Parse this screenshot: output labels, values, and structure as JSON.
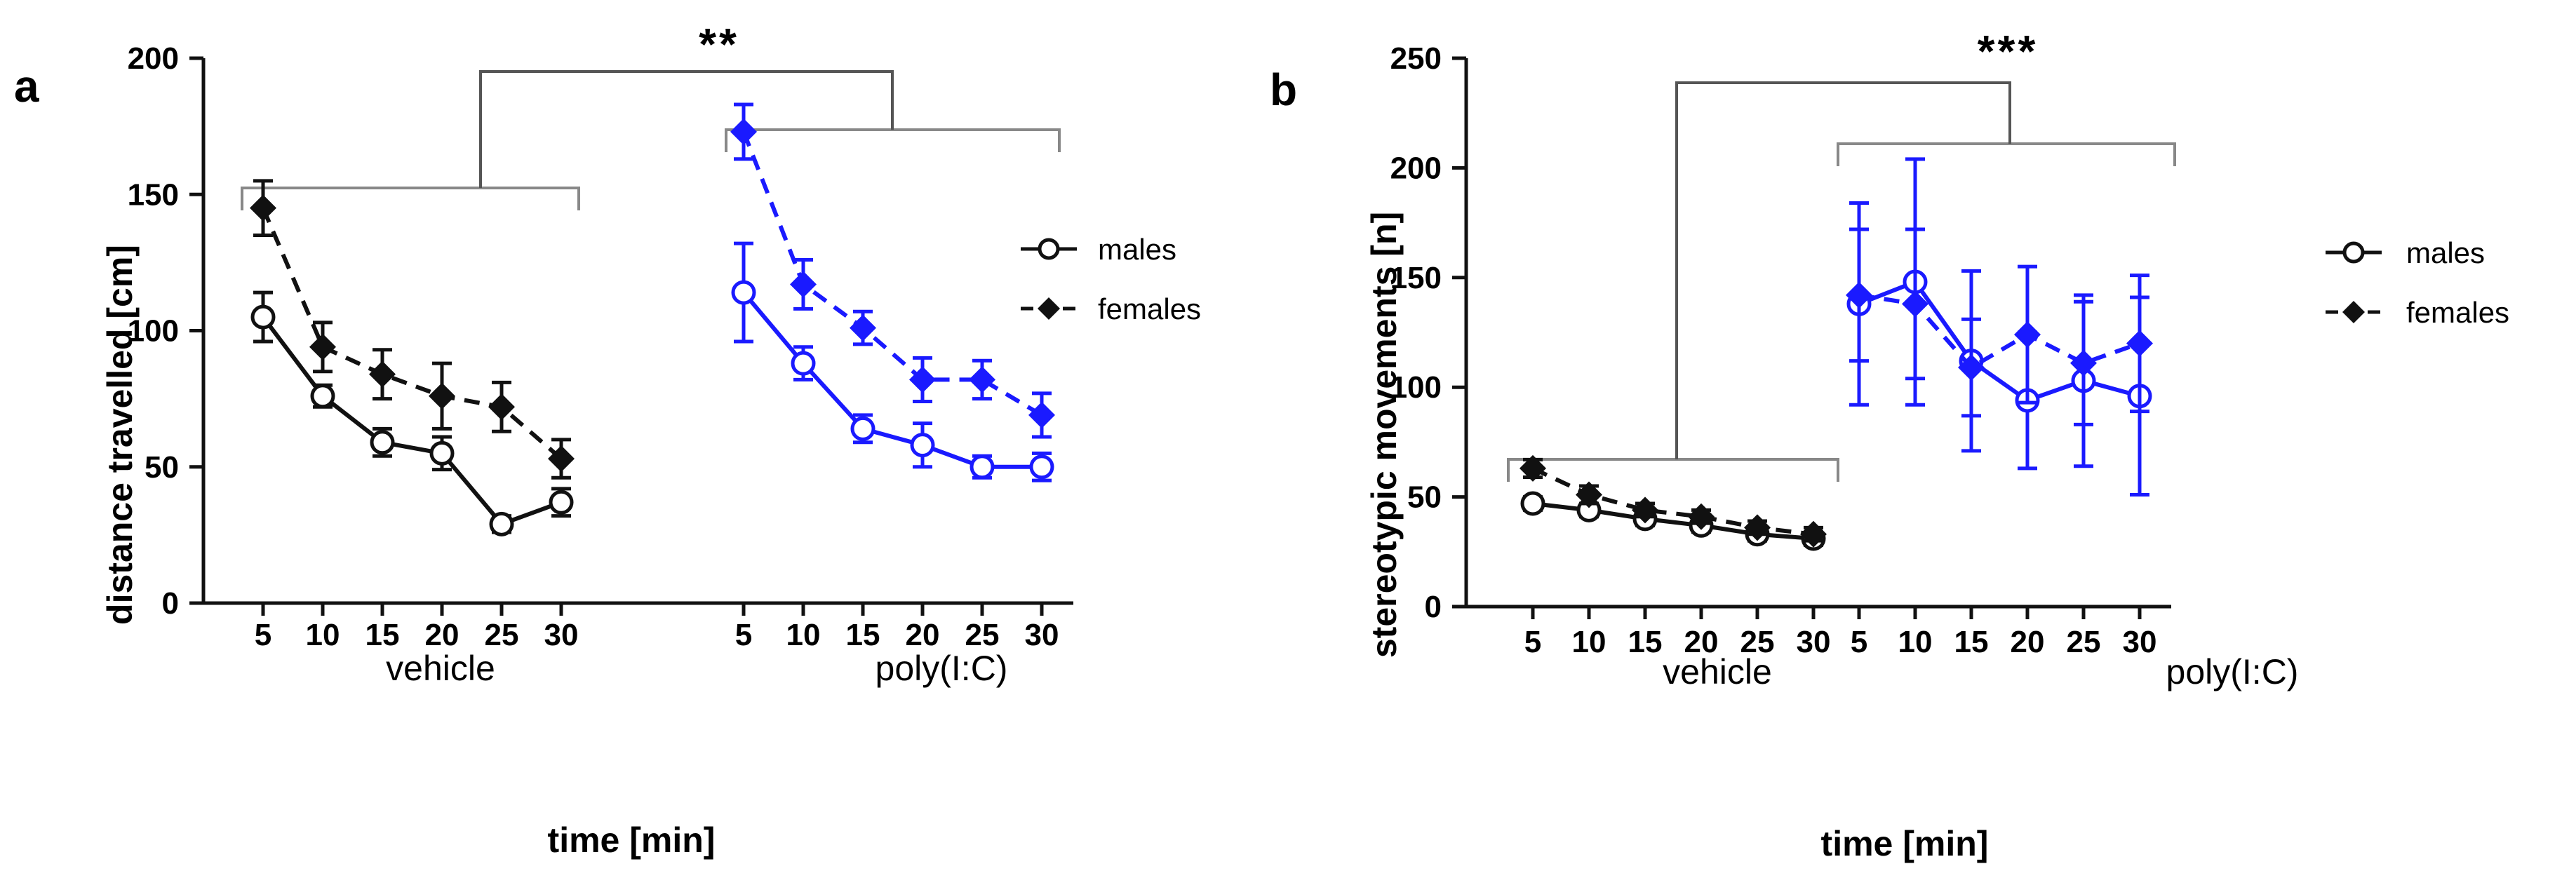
{
  "panels": [
    {
      "letter": "a",
      "significance": "**",
      "legend": [
        "males",
        "females"
      ],
      "group_labels": [
        "vehicle",
        "poly(I:C)"
      ],
      "colors": {
        "vehicle": "#111111",
        "polyIC": "#1a1aff"
      }
    },
    {
      "letter": "b",
      "significance": "***",
      "legend": [
        "males",
        "females"
      ],
      "group_labels": [
        "vehicle",
        "poly(I:C)"
      ],
      "colors": {
        "vehicle": "#111111",
        "polyIC": "#1a1aff"
      }
    }
  ],
  "chart_data": [
    {
      "type": "line",
      "xlabel": "time [min]",
      "ylabel": "distance travelled [cm]",
      "ylim": [
        0,
        200
      ],
      "yticks": [
        0,
        50,
        100,
        150,
        200
      ],
      "x": [
        5,
        10,
        15,
        20,
        25,
        30
      ],
      "groups": [
        {
          "label": "vehicle",
          "series": [
            {
              "name": "males",
              "values": [
                105,
                76,
                59,
                55,
                29,
                37
              ],
              "errors": [
                9,
                4,
                5,
                6,
                3,
                5
              ]
            },
            {
              "name": "females",
              "values": [
                145,
                94,
                84,
                76,
                72,
                53
              ],
              "errors": [
                10,
                9,
                9,
                12,
                9,
                7
              ]
            }
          ]
        },
        {
          "label": "poly(I:C)",
          "series": [
            {
              "name": "males",
              "values": [
                114,
                88,
                64,
                58,
                50,
                50
              ],
              "errors": [
                18,
                6,
                5,
                8,
                4,
                5
              ]
            },
            {
              "name": "females",
              "values": [
                173,
                117,
                101,
                82,
                82,
                69
              ],
              "errors": [
                10,
                9,
                6,
                8,
                7,
                8
              ]
            }
          ]
        }
      ]
    },
    {
      "type": "line",
      "xlabel": "time [min]",
      "ylabel": "stereotypic movements  [n]",
      "ylim": [
        0,
        250
      ],
      "yticks": [
        0,
        50,
        100,
        150,
        200,
        250
      ],
      "x": [
        5,
        10,
        15,
        20,
        25,
        30
      ],
      "groups": [
        {
          "label": "vehicle",
          "series": [
            {
              "name": "males",
              "values": [
                47,
                44,
                40,
                37,
                33,
                31
              ],
              "errors": [
                3,
                3,
                3,
                3,
                3,
                3
              ]
            },
            {
              "name": "females",
              "values": [
                63,
                51,
                44,
                41,
                36,
                33
              ],
              "errors": [
                4,
                4,
                3,
                3,
                3,
                3
              ]
            }
          ]
        },
        {
          "label": "poly(I:C)",
          "series": [
            {
              "name": "males",
              "values": [
                138,
                148,
                112,
                94,
                103,
                96
              ],
              "errors": [
                46,
                56,
                41,
                31,
                39,
                45
              ]
            },
            {
              "name": "females",
              "values": [
                142,
                138,
                109,
                124,
                111,
                120
              ],
              "errors": [
                30,
                34,
                22,
                31,
                28,
                31
              ]
            }
          ]
        }
      ]
    }
  ]
}
